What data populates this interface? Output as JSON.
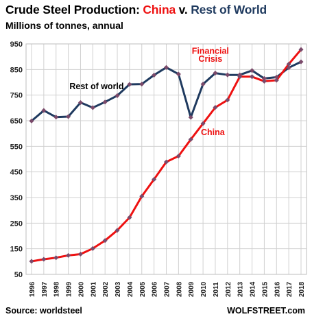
{
  "header": {
    "title_part1": "Crude Steel Production: ",
    "title_china": "China",
    "title_part2": " v. ",
    "title_row": "Rest of World",
    "subtitle": "Millions of tonnes, annual"
  },
  "footer": {
    "source": "Source: worldsteel",
    "brand": "WOLFSTREET.com"
  },
  "colors": {
    "china": "#ee1111",
    "rest_of_world": "#1f3a5f",
    "marker": "#7a4a6a",
    "grid": "#d0d0d0",
    "title_row": "#1f3a5f"
  },
  "chart_data": {
    "type": "line",
    "title": "Crude Steel Production: China v. Rest of World",
    "subtitle": "Millions of tonnes, annual",
    "xlabel": "",
    "ylabel": "",
    "ylim": [
      50,
      950
    ],
    "yticks": [
      50,
      150,
      250,
      350,
      450,
      550,
      650,
      750,
      850,
      950
    ],
    "grid": true,
    "legend": "none (direct labels)",
    "x": [
      "1996",
      "1997",
      "1998",
      "1999",
      "2000",
      "2001",
      "2002",
      "2003",
      "2004",
      "2005",
      "2006",
      "2007",
      "2008",
      "2009",
      "2010",
      "2011",
      "2012",
      "2013",
      "2014",
      "2015",
      "2016",
      "2017",
      "2018"
    ],
    "series": [
      {
        "name": "Rest of world",
        "values": [
          649,
          690,
          664,
          666,
          721,
          701,
          723,
          748,
          792,
          793,
          828,
          858,
          832,
          663,
          793,
          836,
          829,
          829,
          846,
          815,
          820,
          857,
          880
        ]
      },
      {
        "name": "China",
        "values": [
          101,
          109,
          115,
          124,
          129,
          151,
          182,
          222,
          272,
          355,
          421,
          489,
          512,
          577,
          639,
          702,
          731,
          822,
          822,
          804,
          808,
          871,
          928
        ]
      }
    ],
    "annotations": [
      {
        "text": "Rest of world"
      },
      {
        "text": "Financial"
      },
      {
        "text": "Crisis"
      },
      {
        "text": "China"
      }
    ]
  }
}
